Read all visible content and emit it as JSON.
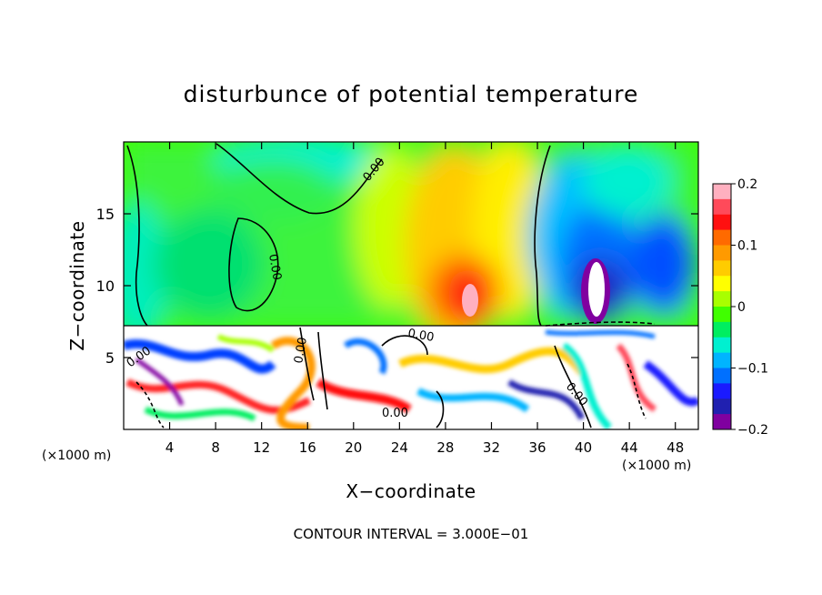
{
  "chart_data": {
    "type": "heatmap",
    "title": "disturbunce of potential temperature",
    "xlabel": "X−coordinate",
    "ylabel": "Z−coordinate",
    "x_unit": "(×1000 m)",
    "x_unit_right": "(×1000 m)",
    "xlim": [
      0,
      50
    ],
    "ylim": [
      0,
      20
    ],
    "x_ticks": [
      4,
      8,
      12,
      16,
      20,
      24,
      28,
      32,
      36,
      40,
      44,
      48
    ],
    "x_tick_labels": [
      "4",
      "8",
      "12",
      "16",
      "20",
      "24",
      "28",
      "32",
      "36",
      "40",
      "44",
      "48"
    ],
    "y_ticks": [
      5,
      10,
      15
    ],
    "y_tick_labels": [
      "5",
      "10",
      "15"
    ],
    "colorbar": {
      "range": [
        -0.2,
        0.2
      ],
      "ticks": [
        0.2,
        0.1,
        0,
        -0.1,
        -0.2
      ],
      "tick_labels": [
        "0.2",
        "0.1",
        "0",
        "−0.1",
        "−0.2"
      ],
      "colors": [
        "#ffb0c0",
        "#ff4a5a",
        "#ff1010",
        "#ff6a00",
        "#ff9a00",
        "#ffcc00",
        "#ffff00",
        "#a8ff00",
        "#40ff00",
        "#00ee60",
        "#00f0d0",
        "#00b4ff",
        "#0070ff",
        "#1a1aff",
        "#2020b0",
        "#8000a0"
      ]
    },
    "contour_labels": [
      "0.00",
      "0.00",
      "0.00",
      "0.00",
      "0.00",
      "0.00",
      "0.00"
    ],
    "footer": "CONTOUR INTERVAL = 3.000E−01"
  }
}
